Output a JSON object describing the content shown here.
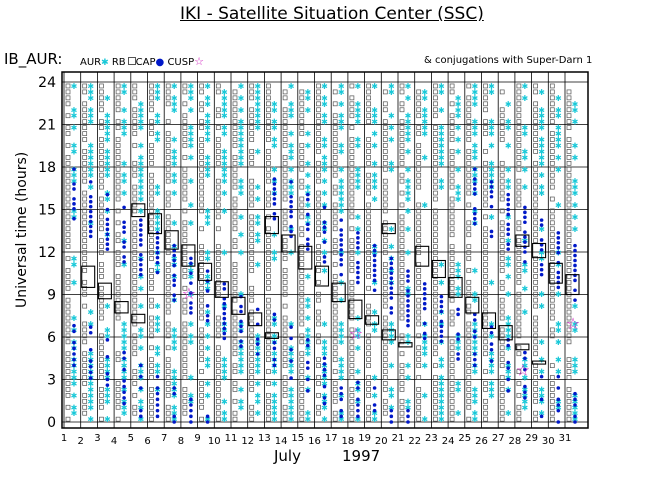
{
  "page": {
    "title": "IKI - Satellite Situation Center (SSC)",
    "dataset": "IB_AUR:",
    "legend": {
      "aur": "AUR",
      "rb": "RB",
      "cap": "CAP",
      "cusp": "CUSP"
    },
    "conjugations": "& conjugations with Super-Darn 1",
    "xlabel_month": "July",
    "xlabel_year": "1997",
    "ylabel": "Universal time (hours)"
  },
  "colors": {
    "aur": "#18c8d8",
    "rb": "#555555",
    "cap": "#0018c8",
    "cusp": "#d020c0"
  },
  "chart_data": {
    "type": "scatter",
    "title": "IKI - Satellite Situation Center (SSC)",
    "xlabel": "July 1997",
    "ylabel": "Universal time (hours)",
    "x_ticks": [
      1,
      2,
      3,
      4,
      5,
      6,
      7,
      8,
      9,
      10,
      11,
      12,
      13,
      14,
      15,
      16,
      17,
      18,
      19,
      20,
      21,
      22,
      23,
      24,
      25,
      26,
      27,
      28,
      29,
      30,
      31
    ],
    "y_ticks": [
      0,
      3,
      6,
      9,
      12,
      15,
      18,
      21,
      24
    ],
    "ylim": [
      0,
      24
    ],
    "xlim": [
      1,
      32
    ],
    "grid": true,
    "conjunction_boxes": [
      {
        "day": 2,
        "t0": 9.5,
        "t1": 11
      },
      {
        "day": 3,
        "t0": 8.7,
        "t1": 9.8
      },
      {
        "day": 4,
        "t0": 7.7,
        "t1": 8.5
      },
      {
        "day": 5,
        "t0": 14.5,
        "t1": 15.4
      },
      {
        "day": 5,
        "t0": 7.0,
        "t1": 7.6
      },
      {
        "day": 6,
        "t0": 13.3,
        "t1": 14.7
      },
      {
        "day": 7,
        "t0": 12.2,
        "t1": 13.5
      },
      {
        "day": 8,
        "t0": 11,
        "t1": 12.5
      },
      {
        "day": 9,
        "t0": 10,
        "t1": 11.2
      },
      {
        "day": 10,
        "t0": 8.8,
        "t1": 9.9
      },
      {
        "day": 11,
        "t0": 7.6,
        "t1": 8.8
      },
      {
        "day": 12,
        "t0": 6.8,
        "t1": 7.7
      },
      {
        "day": 13,
        "t0": 13.3,
        "t1": 14.5
      },
      {
        "day": 13,
        "t0": 5.9,
        "t1": 6.3
      },
      {
        "day": 14,
        "t0": 12,
        "t1": 13.2
      },
      {
        "day": 15,
        "t0": 10.8,
        "t1": 12.4
      },
      {
        "day": 16,
        "t0": 9.6,
        "t1": 11.0
      },
      {
        "day": 17,
        "t0": 8.5,
        "t1": 9.8
      },
      {
        "day": 18,
        "t0": 7.3,
        "t1": 8.6
      },
      {
        "day": 19,
        "t0": 6.9,
        "t1": 7.5
      },
      {
        "day": 20,
        "t0": 13.3,
        "t1": 14.0
      },
      {
        "day": 20,
        "t0": 5.8,
        "t1": 6.5
      },
      {
        "day": 21,
        "t0": 5.3,
        "t1": 5.6
      },
      {
        "day": 22,
        "t0": 11,
        "t1": 12.4
      },
      {
        "day": 23,
        "t0": 10.2,
        "t1": 11.4
      },
      {
        "day": 24,
        "t0": 8.8,
        "t1": 10.2
      },
      {
        "day": 25,
        "t0": 7.7,
        "t1": 8.8
      },
      {
        "day": 26,
        "t0": 6.6,
        "t1": 7.7
      },
      {
        "day": 27,
        "t0": 5.8,
        "t1": 6.8
      },
      {
        "day": 28,
        "t0": 12.4,
        "t1": 13.2
      },
      {
        "day": 28,
        "t0": 5.1,
        "t1": 5.5
      },
      {
        "day": 29,
        "t0": 11.6,
        "t1": 12.6
      },
      {
        "day": 29,
        "t0": 4.2,
        "t1": 4.3
      },
      {
        "day": 30,
        "t0": 9.8,
        "t1": 11.2
      },
      {
        "day": 31,
        "t0": 9.0,
        "t1": 10.4
      }
    ],
    "cusp_stars": [
      {
        "day": 8,
        "t": 9.1
      },
      {
        "day": 18,
        "t": 6.3
      },
      {
        "day": 28,
        "t": 3.7
      },
      {
        "day": 31,
        "t": 7.0
      }
    ]
  }
}
